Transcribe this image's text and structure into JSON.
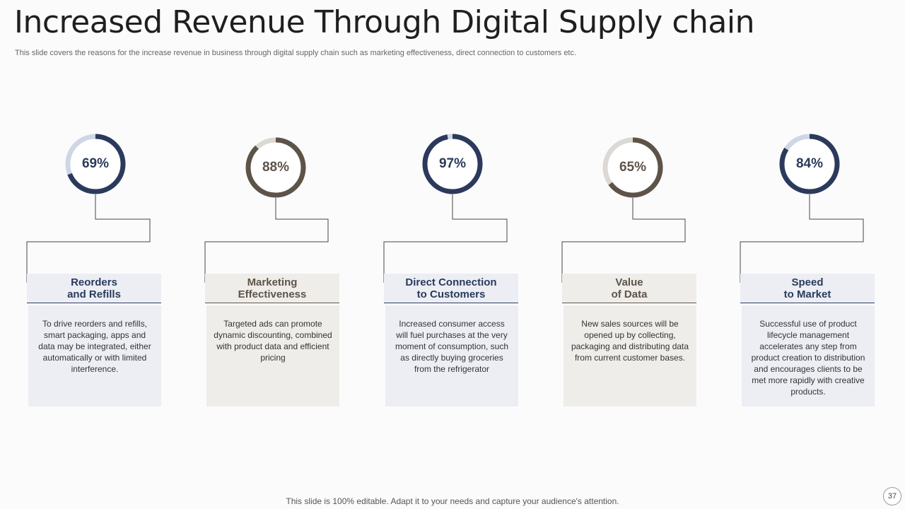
{
  "title": "Increased Revenue Through Digital Supply chain",
  "subtitle": "This slide covers the reasons for the increase revenue in business through digital supply chain such as marketing effectiveness, direct connection to customers etc.",
  "colors": {
    "navy": "#2b3a5c",
    "navy_track": "#cfd6e6",
    "navy_bg": "#eceef4",
    "brown": "#5e5348",
    "brown_track": "#dcd8d4",
    "brown_bg": "#efedea"
  },
  "items": [
    {
      "percent": 69,
      "percent_label": "69%",
      "heading": "Reorders\nand Refills",
      "text": "To drive reorders and refills, smart packaging, apps and data may be integrated, either automatically or with limited interference.",
      "theme": "navy"
    },
    {
      "percent": 88,
      "percent_label": "88%",
      "heading": "Marketing\nEffectiveness",
      "text": "Targeted ads can promote dynamic discounting, combined with product data and efficient pricing",
      "theme": "brown"
    },
    {
      "percent": 97,
      "percent_label": "97%",
      "heading": "Direct Connection\nto Customers",
      "text": "Increased consumer access will fuel purchases at the very moment of consumption, such as directly buying groceries from the refrigerator",
      "theme": "navy"
    },
    {
      "percent": 65,
      "percent_label": "65%",
      "heading": "Value\nof Data",
      "text": "New sales sources will be opened up by collecting, packaging and distributing data from current customer bases.",
      "theme": "brown"
    },
    {
      "percent": 84,
      "percent_label": "84%",
      "heading": "Speed\nto Market",
      "text": "Successful use of product lifecycle management accelerates any step from product creation to distribution and encourages clients to be met more rapidly with creative products.",
      "theme": "navy"
    }
  ],
  "footer": "This slide is 100% editable. Adapt it to your needs and capture your audience's attention.",
  "page_number": "37"
}
